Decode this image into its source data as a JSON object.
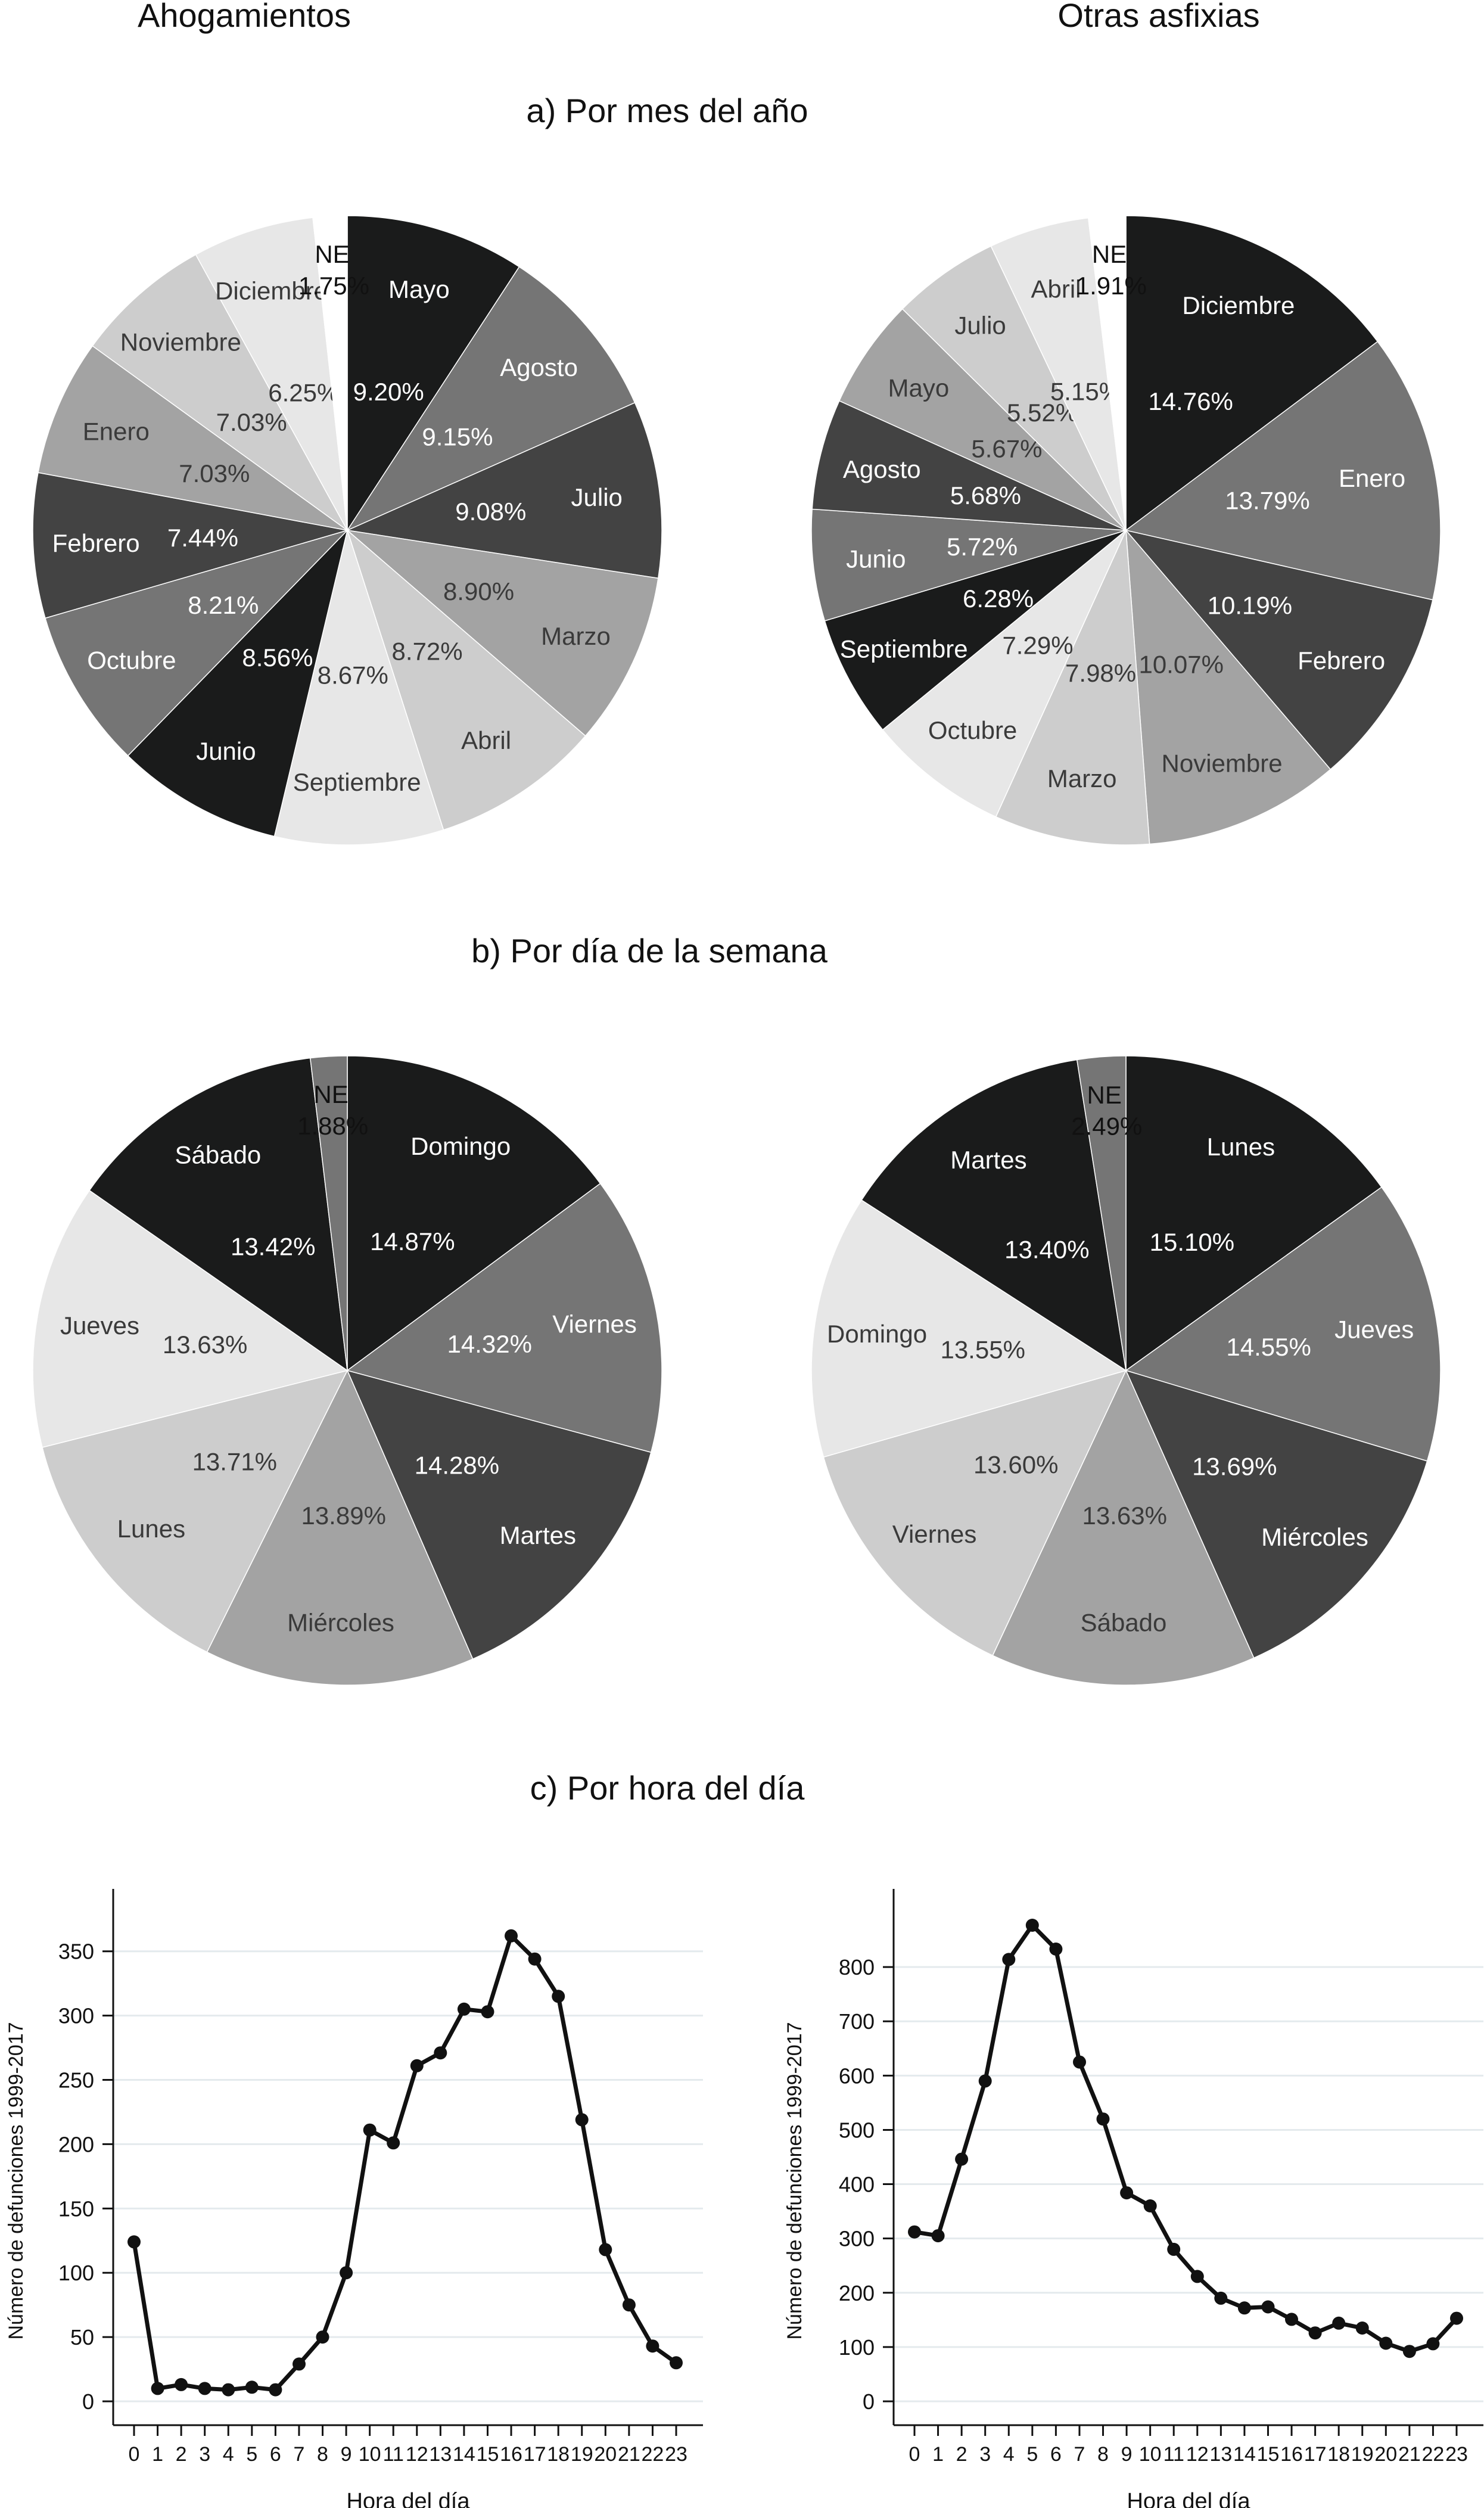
{
  "headers": {
    "left": "Ahogamientos",
    "right": "Otras asfixias"
  },
  "sections": {
    "a": "a) Por mes del año",
    "b": "b) Por día de la semana",
    "c": "c) Por hora del día"
  },
  "chart_data": [
    {
      "id": "pie-month-ahogamientos",
      "type": "pie",
      "column": "left",
      "section": "a",
      "slices": [
        {
          "label": "Mayo",
          "value": 9.2,
          "pct": "9.20%",
          "color": "#1a1b1b"
        },
        {
          "label": "Agosto",
          "value": 9.15,
          "pct": "9.15%",
          "color": "#757575"
        },
        {
          "label": "Julio",
          "value": 9.08,
          "pct": "9.08%",
          "color": "#434343"
        },
        {
          "label": "Marzo",
          "value": 8.9,
          "pct": "8.90%",
          "color": "#a3a3a3"
        },
        {
          "label": "Abril",
          "value": 8.72,
          "pct": "8.72%",
          "color": "#cdcdcd"
        },
        {
          "label": "Septiembre",
          "value": 8.67,
          "pct": "8.67%",
          "color": "#e7e7e7"
        },
        {
          "label": "Junio",
          "value": 8.56,
          "pct": "8.56%",
          "color": "#1a1b1b"
        },
        {
          "label": "Octubre",
          "value": 8.21,
          "pct": "8.21%",
          "color": "#757575"
        },
        {
          "label": "Febrero",
          "value": 7.44,
          "pct": "7.44%",
          "color": "#434343"
        },
        {
          "label": "Enero",
          "value": 7.03,
          "pct": "7.03%",
          "color": "#a3a3a3"
        },
        {
          "label": "Noviembre",
          "value": 7.03,
          "pct": "7.03%",
          "color": "#cdcdcd"
        },
        {
          "label": "Diciembre",
          "value": 6.25,
          "pct": "6.25%",
          "color": "#e7e7e7"
        },
        {
          "label": "NE",
          "value": 1.75,
          "pct": "1.75%",
          "color": "#ffffff"
        }
      ]
    },
    {
      "id": "pie-month-otras",
      "type": "pie",
      "column": "right",
      "section": "a",
      "slices": [
        {
          "label": "Diciembre",
          "value": 14.76,
          "pct": "14.76%",
          "color": "#1a1b1b"
        },
        {
          "label": "Enero",
          "value": 13.79,
          "pct": "13.79%",
          "color": "#757575"
        },
        {
          "label": "Febrero",
          "value": 10.19,
          "pct": "10.19%",
          "color": "#434343"
        },
        {
          "label": "Noviembre",
          "value": 10.07,
          "pct": "10.07%",
          "color": "#a3a3a3"
        },
        {
          "label": "Marzo",
          "value": 7.98,
          "pct": "7.98%",
          "color": "#cdcdcd"
        },
        {
          "label": "Octubre",
          "value": 7.29,
          "pct": "7.29%",
          "color": "#e7e7e7"
        },
        {
          "label": "Septiembre",
          "value": 6.28,
          "pct": "6.28%",
          "color": "#1a1b1b"
        },
        {
          "label": "Junio",
          "value": 5.72,
          "pct": "5.72%",
          "color": "#757575"
        },
        {
          "label": "Agosto",
          "value": 5.68,
          "pct": "5.68%",
          "color": "#434343"
        },
        {
          "label": "Mayo",
          "value": 5.67,
          "pct": "5.67%",
          "color": "#a3a3a3"
        },
        {
          "label": "Julio",
          "value": 5.52,
          "pct": "5.52%",
          "color": "#cdcdcd"
        },
        {
          "label": "Abril",
          "value": 5.15,
          "pct": "5.15%",
          "color": "#e7e7e7"
        },
        {
          "label": "NE",
          "value": 1.91,
          "pct": "1.91%",
          "color": "#ffffff"
        }
      ]
    },
    {
      "id": "pie-day-ahogamientos",
      "type": "pie",
      "column": "left",
      "section": "b",
      "slices": [
        {
          "label": "Domingo",
          "value": 14.87,
          "pct": "14.87%",
          "color": "#1a1b1b"
        },
        {
          "label": "Viernes",
          "value": 14.32,
          "pct": "14.32%",
          "color": "#757575"
        },
        {
          "label": "Martes",
          "value": 14.28,
          "pct": "14.28%",
          "color": "#434343"
        },
        {
          "label": "Miércoles",
          "value": 13.89,
          "pct": "13.89%",
          "color": "#a3a3a3"
        },
        {
          "label": "Lunes",
          "value": 13.71,
          "pct": "13.71%",
          "color": "#cdcdcd"
        },
        {
          "label": "Jueves",
          "value": 13.63,
          "pct": "13.63%",
          "color": "#e7e7e7"
        },
        {
          "label": "Sábado",
          "value": 13.42,
          "pct": "13.42%",
          "color": "#1a1b1b"
        },
        {
          "label": "NE",
          "value": 1.88,
          "pct": "1.88%",
          "color": "#757575"
        }
      ]
    },
    {
      "id": "pie-day-otras",
      "type": "pie",
      "column": "right",
      "section": "b",
      "slices": [
        {
          "label": "Lunes",
          "value": 15.1,
          "pct": "15.10%",
          "color": "#1a1b1b"
        },
        {
          "label": "Jueves",
          "value": 14.55,
          "pct": "14.55%",
          "color": "#757575"
        },
        {
          "label": "Miércoles",
          "value": 13.69,
          "pct": "13.69%",
          "color": "#434343"
        },
        {
          "label": "Sábado",
          "value": 13.63,
          "pct": "13.63%",
          "color": "#a3a3a3"
        },
        {
          "label": "Viernes",
          "value": 13.6,
          "pct": "13.60%",
          "color": "#cdcdcd"
        },
        {
          "label": "Domingo",
          "value": 13.55,
          "pct": "13.55%",
          "color": "#e7e7e7"
        },
        {
          "label": "Martes",
          "value": 13.4,
          "pct": "13.40%",
          "color": "#1a1b1b"
        },
        {
          "label": "NE",
          "value": 2.49,
          "pct": "2.49%",
          "color": "#757575"
        }
      ]
    },
    {
      "id": "line-hour-ahogamientos",
      "type": "line",
      "column": "left",
      "section": "c",
      "xlabel": "Hora del día",
      "ylabel": "Número de defunciones 1999-2017",
      "x": [
        0,
        1,
        2,
        3,
        4,
        5,
        6,
        7,
        8,
        9,
        10,
        11,
        12,
        13,
        14,
        15,
        16,
        17,
        18,
        19,
        20,
        21,
        22,
        23
      ],
      "y": [
        124,
        10,
        13,
        10,
        9,
        11,
        9,
        29,
        50,
        100,
        211,
        201,
        261,
        271,
        305,
        303,
        362,
        344,
        315,
        219,
        118,
        75,
        43,
        30
      ],
      "yticks": [
        0,
        50,
        100,
        150,
        200,
        250,
        300,
        350
      ],
      "xticks": [
        "0",
        "1",
        "2",
        "3",
        "4",
        "5",
        "6",
        "7",
        "8",
        "9",
        "10",
        "11",
        "12",
        "13",
        "14",
        "15",
        "16",
        "17",
        "18",
        "19",
        "20",
        "21",
        "22",
        "23"
      ],
      "ylim": [
        0,
        380
      ],
      "grid": true
    },
    {
      "id": "line-hour-otras",
      "type": "line",
      "column": "right",
      "section": "c",
      "xlabel": "Hora del día",
      "ylabel": "Número de defunciones 1999-2017",
      "x": [
        0,
        1,
        2,
        3,
        4,
        5,
        6,
        7,
        8,
        9,
        10,
        11,
        12,
        13,
        14,
        15,
        16,
        17,
        18,
        19,
        20,
        21,
        22,
        23
      ],
      "y": [
        312,
        305,
        446,
        590,
        814,
        877,
        833,
        625,
        520,
        384,
        360,
        280,
        230,
        190,
        172,
        174,
        151,
        126,
        144,
        135,
        107,
        92,
        106,
        153
      ],
      "yticks": [
        0,
        100,
        200,
        300,
        400,
        500,
        600,
        700,
        800
      ],
      "xticks": [
        "0",
        "1",
        "2",
        "3",
        "4",
        "5",
        "6",
        "7",
        "8",
        "9",
        "10",
        "11",
        "12",
        "13",
        "14",
        "15",
        "16",
        "17",
        "18",
        "19",
        "20",
        "21",
        "22",
        "23"
      ],
      "ylim": [
        0,
        900
      ],
      "grid": true
    }
  ]
}
